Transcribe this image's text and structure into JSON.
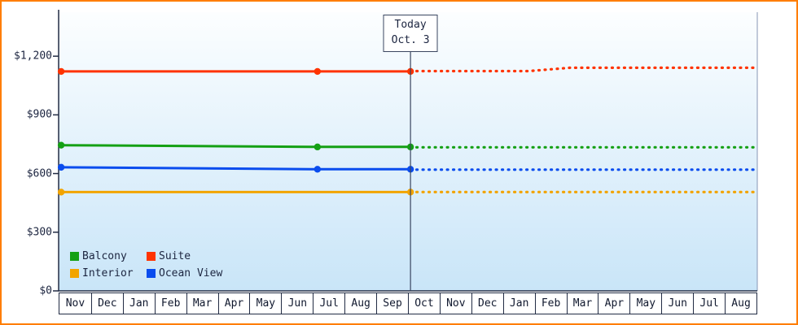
{
  "chart_data": {
    "type": "line",
    "title": "",
    "xlabel": "",
    "ylabel": "",
    "grid": false,
    "legend_position": "inside-bottom-left",
    "ylim": [
      0,
      1425
    ],
    "yticks": [
      {
        "value": 0,
        "label": "$0"
      },
      {
        "value": 300,
        "label": "$300"
      },
      {
        "value": 600,
        "label": "$600"
      },
      {
        "value": 900,
        "label": "$900"
      },
      {
        "value": 1200,
        "label": "$1,200"
      }
    ],
    "x_categories": [
      "Nov",
      "Dec",
      "Jan",
      "Feb",
      "Mar",
      "Apr",
      "May",
      "Jun",
      "Jul",
      "Aug",
      "Sep",
      "Oct",
      "Nov",
      "Dec",
      "Jan",
      "Feb",
      "Mar",
      "Apr",
      "May",
      "Jun",
      "Jul",
      "Aug"
    ],
    "today": {
      "line1": "Today",
      "line2": "Oct. 3",
      "x_position": 11.08
    },
    "series": [
      {
        "name": "Interior",
        "color": "#f2a400",
        "solid": [
          [
            0.08,
            505
          ],
          [
            11.08,
            505
          ]
        ],
        "dashed": [
          [
            11.08,
            505
          ],
          [
            22,
            505
          ]
        ],
        "markers": [
          [
            0.08,
            505
          ],
          [
            11.08,
            505
          ]
        ]
      },
      {
        "name": "Ocean View",
        "color": "#0a4cee",
        "solid": [
          [
            0.08,
            632
          ],
          [
            8.15,
            622
          ],
          [
            11.08,
            622
          ]
        ],
        "dashed": [
          [
            11.08,
            620
          ],
          [
            22,
            620
          ]
        ],
        "markers": [
          [
            0.08,
            632
          ],
          [
            8.15,
            622
          ],
          [
            11.08,
            622
          ]
        ]
      },
      {
        "name": "Balcony",
        "color": "#14a014",
        "solid": [
          [
            0.08,
            745
          ],
          [
            8.15,
            736
          ],
          [
            11.08,
            736
          ]
        ],
        "dashed": [
          [
            11.08,
            734
          ],
          [
            22,
            734
          ]
        ],
        "markers": [
          [
            0.08,
            745
          ],
          [
            8.15,
            736
          ],
          [
            11.08,
            736
          ]
        ]
      },
      {
        "name": "Suite",
        "color": "#ff3300",
        "solid": [
          [
            0.08,
            1122
          ],
          [
            8.15,
            1122
          ],
          [
            11.08,
            1122
          ]
        ],
        "dashed": [
          [
            11.08,
            1124
          ],
          [
            14.8,
            1124
          ],
          [
            16.1,
            1141
          ],
          [
            22,
            1141
          ]
        ],
        "markers": [
          [
            0.08,
            1122
          ],
          [
            8.15,
            1122
          ],
          [
            11.08,
            1122
          ]
        ]
      }
    ],
    "legend": [
      {
        "label": "Balcony",
        "color": "#14a014"
      },
      {
        "label": "Suite",
        "color": "#ff3300"
      },
      {
        "label": "Interior",
        "color": "#f2a400"
      },
      {
        "label": "Ocean View",
        "color": "#0a4cee"
      }
    ],
    "colors": {
      "frame_border": "#ff7d00",
      "axis": "#222c44",
      "today_line": "#3a4660",
      "plot_bg_top": "#fcfeff",
      "plot_bg_bottom": "#c9e5f8"
    }
  }
}
